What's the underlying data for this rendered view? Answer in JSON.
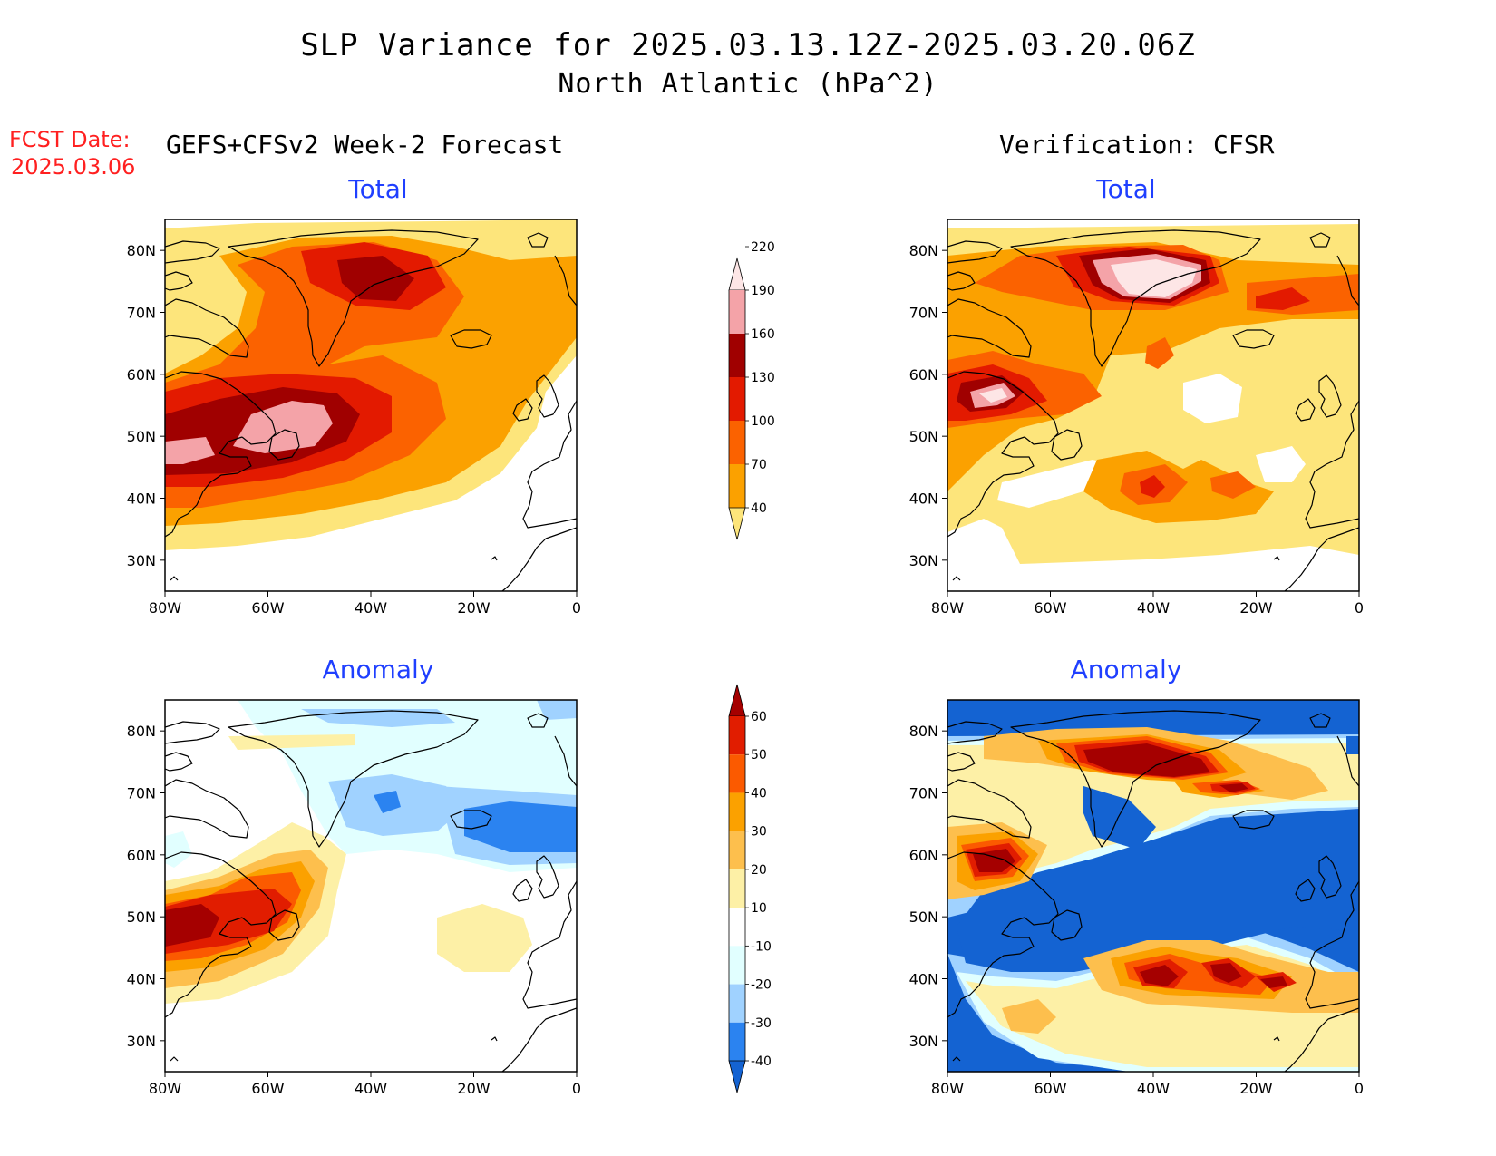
{
  "header": {
    "title_line1": "SLP Variance for 2025.03.13.12Z-2025.03.20.06Z",
    "title_line2": "North Atlantic (hPa^2)",
    "fcst_label": "FCST Date:",
    "fcst_date": "2025.03.06",
    "left_heading": "GEFS+CFSv2 Week-2 Forecast",
    "right_heading": "Verification: CFSR"
  },
  "panels": {
    "forecast_total": {
      "title": "Total"
    },
    "verification_total": {
      "title": "Total"
    },
    "forecast_anomaly": {
      "title": "Anomaly"
    },
    "verification_anomaly": {
      "title": "Anomaly"
    }
  },
  "axes": {
    "lat_labels": [
      "80N",
      "70N",
      "60N",
      "50N",
      "40N",
      "30N"
    ],
    "lon_labels": [
      "80W",
      "60W",
      "40W",
      "20W",
      "0"
    ],
    "lat_range": [
      25,
      85
    ],
    "lon_range": [
      -80,
      0
    ]
  },
  "colorbars": {
    "total": {
      "levels": [
        "40",
        "70",
        "100",
        "130",
        "160",
        "190",
        "220"
      ],
      "colors": [
        "#fde57b",
        "#fba100",
        "#fb6200",
        "#e31a00",
        "#a00000",
        "#f4a3a8",
        "#fde6e6"
      ]
    },
    "anomaly": {
      "levels": [
        "-40",
        "-30",
        "-20",
        "-10",
        "10",
        "20",
        "30",
        "40",
        "50",
        "60"
      ],
      "colors": [
        "#1463d2",
        "#2b83f0",
        "#a0d2ff",
        "#e1ffff",
        "#ffffff",
        "#fdf0a6",
        "#fdbf4d",
        "#fba100",
        "#fb5a00",
        "#e11d00",
        "#a50000"
      ]
    }
  },
  "palette": {
    "total": {
      "yellow": "#fde57b",
      "orange": "#fba100",
      "dkorange": "#fb6200",
      "red": "#e31a00",
      "dkred": "#a00000",
      "pink": "#f4a3a8",
      "ltpink": "#fde6e6"
    },
    "anomaly": {
      "blue40": "#1463d2",
      "blue30": "#2b83f0",
      "blue20": "#a0d2ff",
      "cyan10": "#e1ffff",
      "yellow10": "#fdf0a6",
      "yellow20": "#fdbf4d",
      "orange30": "#fba100",
      "orange40": "#fb5a00",
      "red50": "#e11d00",
      "dkred60": "#a50000"
    }
  }
}
